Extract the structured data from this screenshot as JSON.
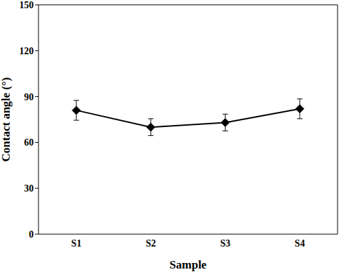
{
  "chart_data": {
    "type": "line",
    "categories": [
      "S1",
      "S2",
      "S3",
      "S4"
    ],
    "values": [
      81,
      70,
      73,
      82
    ],
    "errors": [
      6.5,
      5.5,
      5.5,
      6.5
    ],
    "color": "#000000",
    "marker": "diamond",
    "line_style": "solid",
    "xlabel": "Sample",
    "ylabel": "Contact angle (°)",
    "ylim": [
      0,
      150
    ],
    "yticks": [
      0,
      30,
      60,
      90,
      120,
      150
    ],
    "grid": false
  }
}
